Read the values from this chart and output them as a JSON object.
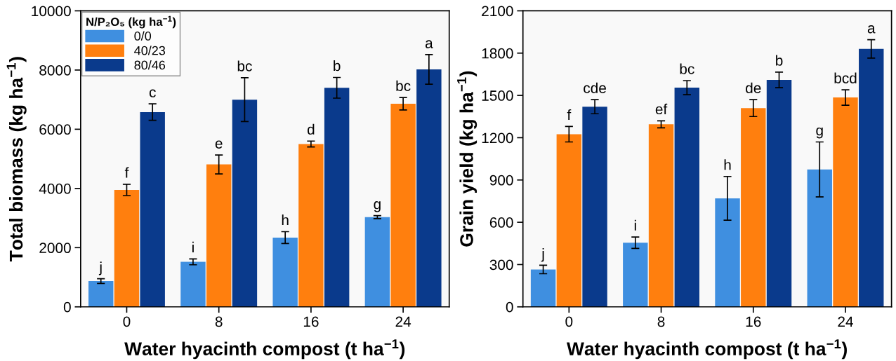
{
  "chart_data": [
    {
      "type": "bar",
      "xlabel": "Water hyacinth compost (t ha$^{−1}$)",
      "ylabel": "Total biomass (kg ha$^{−1}$)",
      "legend_title": "N/P₂O₅ (kg ha$^{−1}$)",
      "legend": "top left",
      "categories": [
        "0",
        "8",
        "16",
        "24"
      ],
      "ylim": [
        0,
        10000
      ],
      "yticks": [
        0,
        2000,
        4000,
        6000,
        8000,
        10000
      ],
      "grid": false,
      "series": [
        {
          "name": "0/0",
          "color": "#3f8fe0",
          "values": [
            870,
            1520,
            2340,
            3030
          ],
          "errors": [
            80,
            100,
            200,
            50
          ],
          "value_labels": [
            "j",
            "i",
            "h",
            "g"
          ]
        },
        {
          "name": "40/23",
          "color": "#ff7f0e",
          "values": [
            3950,
            4810,
            5500,
            6860
          ],
          "errors": [
            190,
            320,
            100,
            210
          ],
          "value_labels": [
            "f",
            "e",
            "d",
            "bc"
          ]
        },
        {
          "name": "80/46",
          "color": "#0a3a8c",
          "values": [
            6580,
            7000,
            7400,
            8020
          ],
          "errors": [
            280,
            740,
            350,
            500
          ],
          "value_labels": [
            "c",
            "bc",
            "b",
            "a"
          ]
        }
      ]
    },
    {
      "type": "bar",
      "xlabel": "Water hyacinth compost (t ha$^{−1}$)",
      "ylabel": "Grain yield (kg ha$^{−1}$)",
      "categories": [
        "0",
        "8",
        "16",
        "24"
      ],
      "ylim": [
        0,
        2100
      ],
      "yticks": [
        0,
        300,
        600,
        900,
        1200,
        1500,
        1800,
        2100
      ],
      "grid": false,
      "series": [
        {
          "color": "#3f8fe0",
          "values": [
            265,
            455,
            770,
            975
          ],
          "errors": [
            30,
            40,
            155,
            195
          ],
          "value_labels": [
            "j",
            "i",
            "h",
            "g"
          ]
        },
        {
          "color": "#ff7f0e",
          "values": [
            1225,
            1295,
            1410,
            1485
          ],
          "errors": [
            55,
            25,
            60,
            55
          ],
          "value_labels": [
            "f",
            "ef",
            "de",
            "bcd"
          ]
        },
        {
          "color": "#0a3a8c",
          "values": [
            1420,
            1555,
            1610,
            1830
          ],
          "errors": [
            50,
            50,
            55,
            65
          ],
          "value_labels": [
            "cde",
            "bc",
            "b",
            "a"
          ]
        }
      ]
    }
  ]
}
